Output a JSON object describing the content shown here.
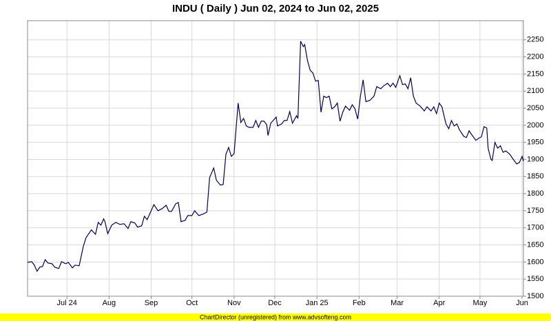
{
  "chart_data": {
    "type": "line",
    "title": "INDU ( Daily ) Jun 02, 2024 to Jun 02, 2025",
    "x": [
      0,
      3,
      5,
      7,
      9,
      11,
      13,
      15,
      18,
      20,
      23,
      25,
      28,
      30,
      33,
      35,
      38,
      41,
      43,
      47,
      50,
      52,
      54,
      56,
      57,
      59,
      62,
      65,
      68,
      71,
      74,
      76,
      79,
      81,
      84,
      86,
      88,
      91,
      93,
      96,
      99,
      102,
      104,
      106,
      109,
      111,
      113,
      116,
      118,
      121,
      123,
      126,
      129,
      132,
      134,
      137,
      139,
      142,
      144,
      146,
      148,
      150,
      152,
      155,
      157,
      159,
      161,
      163,
      166,
      168,
      170,
      172,
      174,
      176,
      177,
      179,
      183,
      184,
      187,
      189,
      191,
      193,
      195,
      198,
      199,
      201,
      203,
      204,
      206,
      208,
      210,
      212,
      214,
      216,
      218,
      220,
      222,
      224,
      226,
      228,
      230,
      232,
      234,
      237,
      239,
      241,
      243,
      245,
      247,
      249,
      252,
      255,
      257,
      260,
      262,
      265,
      267,
      269,
      271,
      274,
      276,
      278,
      280,
      282,
      284,
      286,
      289,
      292,
      294,
      297,
      299,
      301,
      303,
      305,
      307,
      308,
      310,
      312,
      314,
      316,
      318,
      321,
      323,
      325,
      327,
      330,
      332,
      334,
      336,
      338,
      339,
      341,
      342,
      344,
      346,
      348,
      350,
      352,
      355,
      357,
      360,
      362,
      364,
      365
    ],
    "series": [
      {
        "name": "INDU",
        "color": "#000050",
        "values": [
          1599,
          1601,
          1591,
          1573,
          1585,
          1587,
          1607,
          1597,
          1595,
          1585,
          1581,
          1601,
          1595,
          1599,
          1583,
          1591,
          1589,
          1645,
          1671,
          1694,
          1681,
          1716,
          1708,
          1726,
          1718,
          1683,
          1708,
          1716,
          1710,
          1712,
          1698,
          1718,
          1714,
          1702,
          1706,
          1734,
          1724,
          1750,
          1768,
          1750,
          1756,
          1766,
          1748,
          1748,
          1770,
          1774,
          1718,
          1722,
          1736,
          1736,
          1750,
          1736,
          1740,
          1746,
          1847,
          1875,
          1839,
          1825,
          1827,
          1915,
          1935,
          1909,
          1917,
          2065,
          2008,
          2020,
          1998,
          1994,
          1994,
          2014,
          1994,
          2012,
          2012,
          2002,
          1970,
          2006,
          2024,
          1998,
          2004,
          2014,
          2014,
          2040,
          2006,
          2028,
          2020,
          2246,
          2230,
          2236,
          2190,
          2161,
          2153,
          2129,
          2131,
          2038,
          2085,
          2081,
          2085,
          2048,
          2054,
          2065,
          2012,
          2038,
          2056,
          2044,
          2060,
          2048,
          2018,
          2085,
          2133,
          2069,
          2073,
          2085,
          2113,
          2107,
          2115,
          2123,
          2113,
          2123,
          2111,
          2145,
          2119,
          2121,
          2107,
          2139,
          2085,
          2065,
          2056,
          2042,
          2054,
          2042,
          2054,
          2034,
          2065,
          2054,
          2020,
          2004,
          1990,
          2014,
          1998,
          2004,
          1986,
          1968,
          1964,
          1984,
          1972,
          1956,
          1962,
          1966,
          1996,
          1992,
          1933,
          1901,
          1897,
          1950,
          1933,
          1940,
          1921,
          1925,
          1915,
          1903,
          1887,
          1891,
          1909,
          1895
        ]
      }
    ],
    "xlim": [
      0,
      365
    ],
    "xticks": [
      {
        "value": 29,
        "label": "Jul 24"
      },
      {
        "value": 60,
        "label": "Aug"
      },
      {
        "value": 91,
        "label": "Sep"
      },
      {
        "value": 121,
        "label": "Oct"
      },
      {
        "value": 152,
        "label": "Nov"
      },
      {
        "value": 182,
        "label": "Dec"
      },
      {
        "value": 213,
        "label": "Jan 25"
      },
      {
        "value": 244,
        "label": "Feb"
      },
      {
        "value": 272,
        "label": "Mar"
      },
      {
        "value": 303,
        "label": "Apr"
      },
      {
        "value": 333,
        "label": "May"
      },
      {
        "value": 364,
        "label": "Jun"
      }
    ],
    "ylim": [
      1500,
      2306
    ],
    "yticks": [
      1500,
      1550,
      1600,
      1650,
      1700,
      1750,
      1800,
      1850,
      1900,
      1950,
      2000,
      2050,
      2100,
      2150,
      2200,
      2250
    ],
    "grid": true
  },
  "footer": "ChartDirector (unregistered) from www.advsofteng.com"
}
